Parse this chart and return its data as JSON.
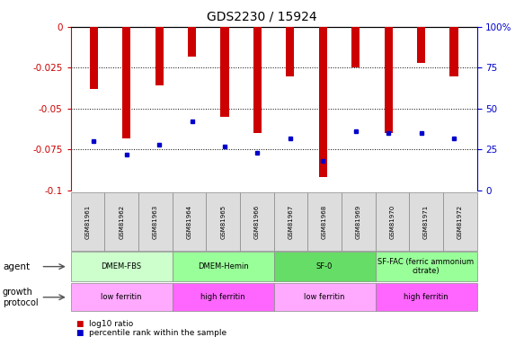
{
  "title": "GDS2230 / 15924",
  "samples": [
    "GSM81961",
    "GSM81962",
    "GSM81963",
    "GSM81964",
    "GSM81965",
    "GSM81966",
    "GSM81967",
    "GSM81968",
    "GSM81969",
    "GSM81970",
    "GSM81971",
    "GSM81972"
  ],
  "log10_ratio": [
    -0.038,
    -0.068,
    -0.036,
    -0.018,
    -0.055,
    -0.065,
    -0.03,
    -0.092,
    -0.025,
    -0.065,
    -0.022,
    -0.03
  ],
  "percentile_rank": [
    30,
    22,
    28,
    42,
    27,
    23,
    32,
    18,
    36,
    35,
    35,
    32
  ],
  "ylim_left": [
    -0.1,
    0
  ],
  "ylim_right": [
    0,
    100
  ],
  "yticks_left": [
    0,
    -0.025,
    -0.05,
    -0.075,
    -0.1
  ],
  "yticks_right": [
    0,
    25,
    50,
    75,
    100
  ],
  "bar_color": "#cc0000",
  "dot_color": "#0000cc",
  "agent_groups": [
    {
      "label": "DMEM-FBS",
      "start": 0,
      "end": 3,
      "color": "#ccffcc"
    },
    {
      "label": "DMEM-Hemin",
      "start": 3,
      "end": 6,
      "color": "#99ff99"
    },
    {
      "label": "SF-0",
      "start": 6,
      "end": 9,
      "color": "#66dd66"
    },
    {
      "label": "SF-FAC (ferric ammonium\ncitrate)",
      "start": 9,
      "end": 12,
      "color": "#99ff99"
    }
  ],
  "protocol_groups": [
    {
      "label": "low ferritin",
      "start": 0,
      "end": 3,
      "color": "#ffaaff"
    },
    {
      "label": "high ferritin",
      "start": 3,
      "end": 6,
      "color": "#ff66ff"
    },
    {
      "label": "low ferritin",
      "start": 6,
      "end": 9,
      "color": "#ffaaff"
    },
    {
      "label": "high ferritin",
      "start": 9,
      "end": 12,
      "color": "#ff66ff"
    }
  ],
  "legend_items": [
    {
      "label": "log10 ratio",
      "color": "#cc0000"
    },
    {
      "label": "percentile rank within the sample",
      "color": "#0000cc"
    }
  ],
  "left_axis_color": "#cc0000",
  "right_axis_color": "#0000cc",
  "bar_width": 0.25
}
